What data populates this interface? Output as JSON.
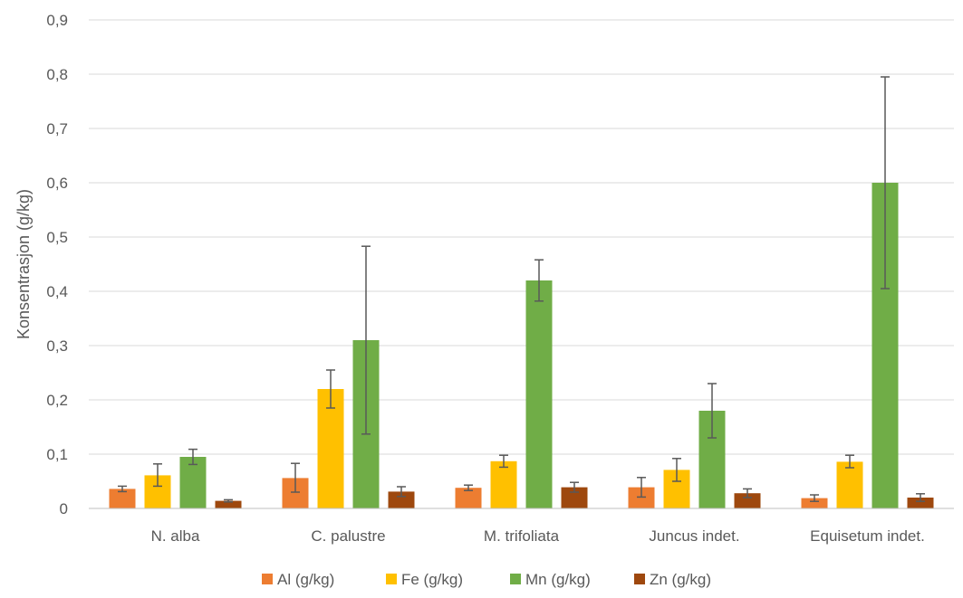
{
  "chart_data": {
    "type": "bar",
    "title": "",
    "xlabel": "",
    "ylabel": "Konsentrasjon (g/kg)",
    "ylim": [
      0,
      0.9
    ],
    "yticks": [
      "0",
      "0,1",
      "0,2",
      "0,3",
      "0,4",
      "0,5",
      "0,6",
      "0,7",
      "0,8",
      "0,9"
    ],
    "grid": true,
    "legend_position": "bottom",
    "categories": [
      "N. alba",
      "C. palustre",
      "M. trifoliata",
      "Juncus indet.",
      "Equisetum indet."
    ],
    "series": [
      {
        "name": "Al (g/kg)",
        "color": "#ED7D31",
        "values": [
          0.036,
          0.056,
          0.038,
          0.039,
          0.019
        ],
        "error_low": [
          0.031,
          0.03,
          0.033,
          0.021,
          0.013
        ],
        "error_high": [
          0.041,
          0.083,
          0.043,
          0.057,
          0.025
        ]
      },
      {
        "name": "Fe (g/kg)",
        "color": "#FFC000",
        "values": [
          0.061,
          0.22,
          0.087,
          0.071,
          0.086
        ],
        "error_low": [
          0.041,
          0.185,
          0.076,
          0.05,
          0.075
        ],
        "error_high": [
          0.082,
          0.255,
          0.098,
          0.092,
          0.098
        ]
      },
      {
        "name": "Mn (g/kg)",
        "color": "#70AD47",
        "values": [
          0.095,
          0.31,
          0.42,
          0.18,
          0.6
        ],
        "error_low": [
          0.081,
          0.137,
          0.382,
          0.13,
          0.405
        ],
        "error_high": [
          0.109,
          0.483,
          0.458,
          0.23,
          0.795
        ]
      },
      {
        "name": "Zn (g/kg)",
        "color": "#9E480E",
        "values": [
          0.014,
          0.031,
          0.039,
          0.028,
          0.02
        ],
        "error_low": [
          0.012,
          0.022,
          0.03,
          0.02,
          0.013
        ],
        "error_high": [
          0.016,
          0.04,
          0.048,
          0.036,
          0.027
        ]
      }
    ]
  }
}
